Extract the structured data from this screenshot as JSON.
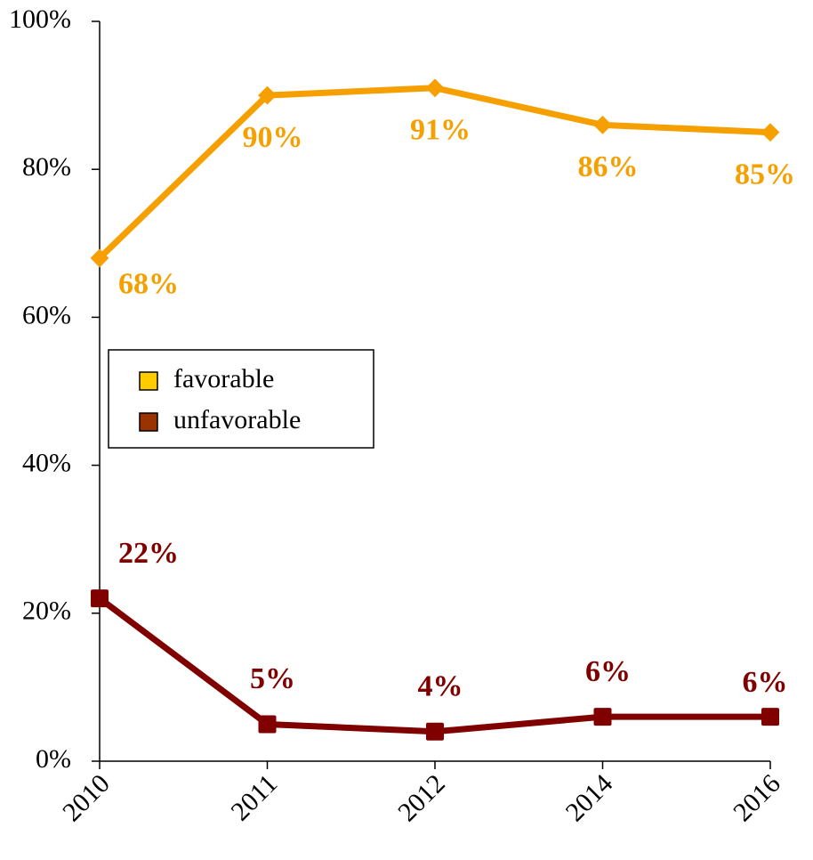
{
  "chart_data": {
    "type": "line",
    "categories": [
      "2010",
      "2011",
      "2012",
      "2014",
      "2016"
    ],
    "series": [
      {
        "name": "favorable",
        "color": "#f5a000",
        "legend_color": "#ffcc00",
        "marker": "diamond",
        "values": [
          68,
          90,
          91,
          86,
          85
        ],
        "value_labels": [
          "68%",
          "90%",
          "91%",
          "86%",
          "85%"
        ]
      },
      {
        "name": "unfavorable",
        "color": "#800000",
        "legend_color": "#993300",
        "marker": "square",
        "values": [
          22,
          5,
          4,
          6,
          6
        ],
        "value_labels": [
          "22%",
          "5%",
          "4%",
          "6%",
          "6%"
        ]
      }
    ],
    "ylim": [
      0,
      100
    ],
    "yticks": [
      {
        "value": 0,
        "label": "0%"
      },
      {
        "value": 20,
        "label": "20%"
      },
      {
        "value": 40,
        "label": "40%"
      },
      {
        "value": 60,
        "label": "60%"
      },
      {
        "value": 80,
        "label": "80%"
      },
      {
        "value": 100,
        "label": "100%"
      }
    ],
    "grid": false,
    "legend": "left"
  }
}
